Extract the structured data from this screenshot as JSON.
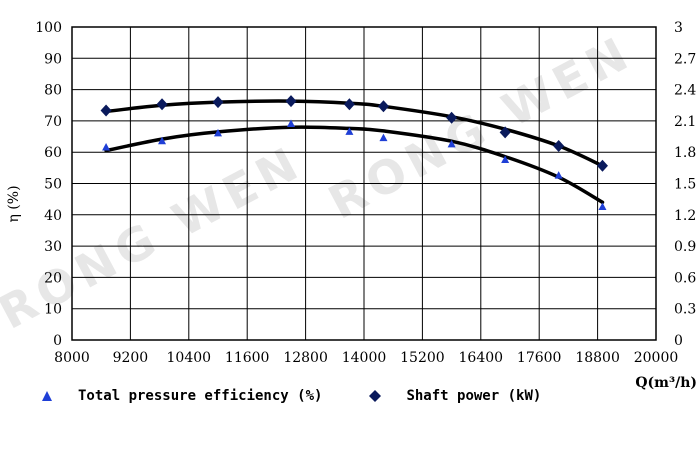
{
  "chart_data": {
    "type": "line",
    "xlabel": "Q(m³/h)",
    "ylabel": "η (%)",
    "xlim": [
      8000,
      20000
    ],
    "ylim": [
      0,
      100
    ],
    "y2lim": [
      0,
      3
    ],
    "x_ticks": [
      "8000",
      "9200",
      "10400",
      "11600",
      "12800",
      "14000",
      "15200",
      "16400",
      "17600",
      "18800",
      "20000"
    ],
    "y_ticks": [
      "0",
      "10",
      "20",
      "30",
      "40",
      "50",
      "60",
      "70",
      "80",
      "90",
      "100"
    ],
    "y2_ticks": [
      "0",
      "0.3",
      "0.6",
      "0.9",
      "1.2",
      "1.5",
      "1.8",
      "2.1",
      "2.4",
      "2.7",
      "3"
    ],
    "grid": true,
    "legend_position": "bottom",
    "watermark": "RONG WEN",
    "series": [
      {
        "name": "Total pressure efficiency (%)",
        "axis": "left",
        "marker": "triangle",
        "marker_color": "#1f3fd6",
        "line_color": "#000000",
        "points": [
          {
            "x": 8700,
            "y": 61.5
          },
          {
            "x": 9850,
            "y": 63.5
          },
          {
            "x": 11000,
            "y": 66
          },
          {
            "x": 12500,
            "y": 69
          },
          {
            "x": 13700,
            "y": 66.5
          },
          {
            "x": 14400,
            "y": 64.5
          },
          {
            "x": 15800,
            "y": 62.5
          },
          {
            "x": 16900,
            "y": 57.5
          },
          {
            "x": 18000,
            "y": 52.5
          },
          {
            "x": 18900,
            "y": 42.5
          }
        ],
        "fit": [
          {
            "x": 8700,
            "y": 60.5
          },
          {
            "x": 9850,
            "y": 64.2
          },
          {
            "x": 11000,
            "y": 66.5
          },
          {
            "x": 12500,
            "y": 68.0
          },
          {
            "x": 13700,
            "y": 67.6
          },
          {
            "x": 14400,
            "y": 66.8
          },
          {
            "x": 15800,
            "y": 63.5
          },
          {
            "x": 16900,
            "y": 58.6
          },
          {
            "x": 18000,
            "y": 52.0
          },
          {
            "x": 18900,
            "y": 44.0
          }
        ]
      },
      {
        "name": "Shaft power (kW)",
        "axis": "right",
        "marker": "diamond",
        "marker_color": "#0a1a5c",
        "line_color": "#000000",
        "points": [
          {
            "x": 8700,
            "y": 2.2
          },
          {
            "x": 9850,
            "y": 2.26
          },
          {
            "x": 11000,
            "y": 2.28
          },
          {
            "x": 12500,
            "y": 2.29
          },
          {
            "x": 13700,
            "y": 2.26
          },
          {
            "x": 14400,
            "y": 2.24
          },
          {
            "x": 15800,
            "y": 2.13
          },
          {
            "x": 16900,
            "y": 1.99
          },
          {
            "x": 18000,
            "y": 1.86
          },
          {
            "x": 18900,
            "y": 1.67
          }
        ],
        "fit": [
          {
            "x": 8700,
            "y": 2.19
          },
          {
            "x": 9850,
            "y": 2.25
          },
          {
            "x": 11000,
            "y": 2.28
          },
          {
            "x": 12500,
            "y": 2.29
          },
          {
            "x": 13700,
            "y": 2.27
          },
          {
            "x": 14400,
            "y": 2.24
          },
          {
            "x": 15800,
            "y": 2.14
          },
          {
            "x": 16900,
            "y": 2.02
          },
          {
            "x": 18000,
            "y": 1.86
          },
          {
            "x": 18900,
            "y": 1.67
          }
        ]
      }
    ]
  }
}
